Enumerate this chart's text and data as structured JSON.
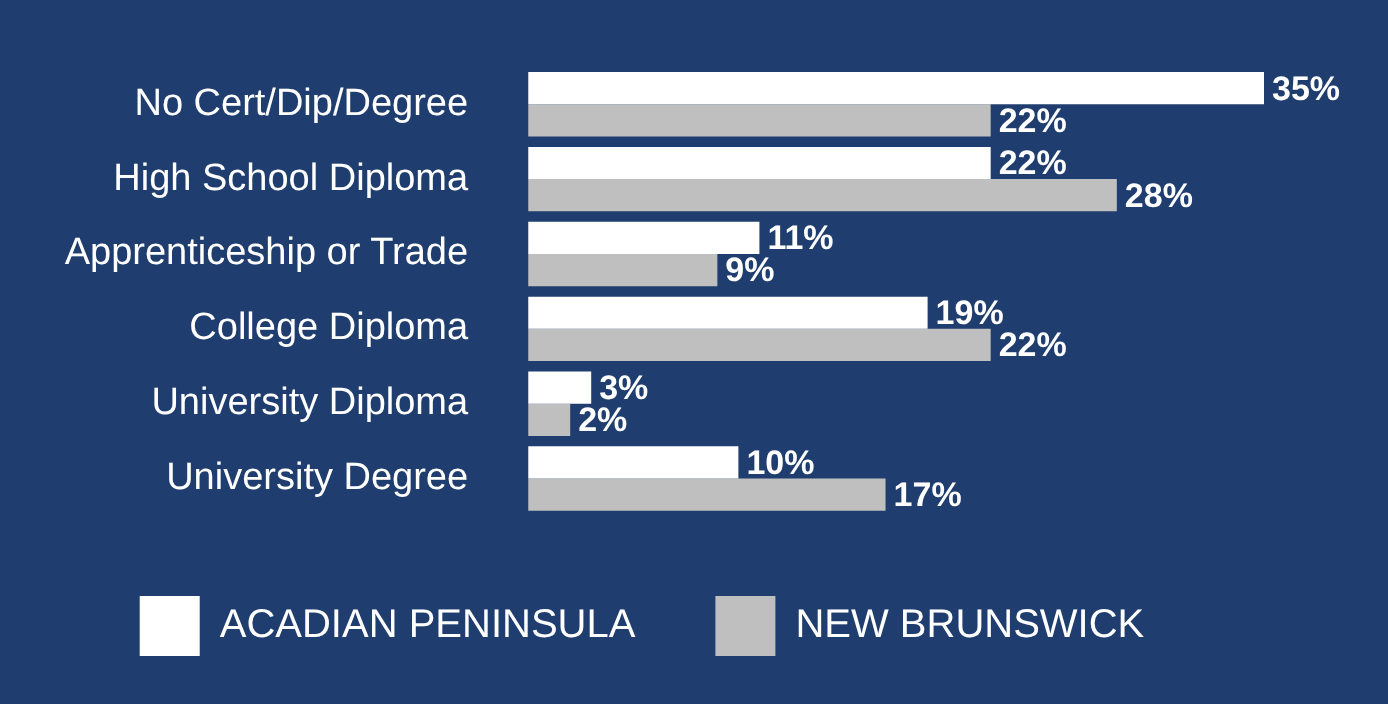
{
  "chart_data": {
    "type": "bar",
    "orientation": "horizontal",
    "categories": [
      "No Cert/Dip/Degree",
      "High School Diploma",
      "Apprenticeship or Trade",
      "College Diploma",
      "University Diploma",
      "University Degree"
    ],
    "series": [
      {
        "name": "ACADIAN PENINSULA",
        "color": "#ffffff",
        "values": [
          35,
          22,
          11,
          19,
          3,
          10
        ],
        "value_labels": [
          "35%",
          "22%",
          "11%",
          "19%",
          "3%",
          "10%"
        ]
      },
      {
        "name": "NEW BRUNSWICK",
        "color": "#bfbfbf",
        "values": [
          22,
          28,
          9,
          22,
          2,
          17
        ],
        "value_labels": [
          "22%",
          "28%",
          "9%",
          "22%",
          "2%",
          "17%"
        ]
      }
    ],
    "xlim": [
      0,
      35
    ],
    "legend": "bottom",
    "tick_labels": "y"
  }
}
